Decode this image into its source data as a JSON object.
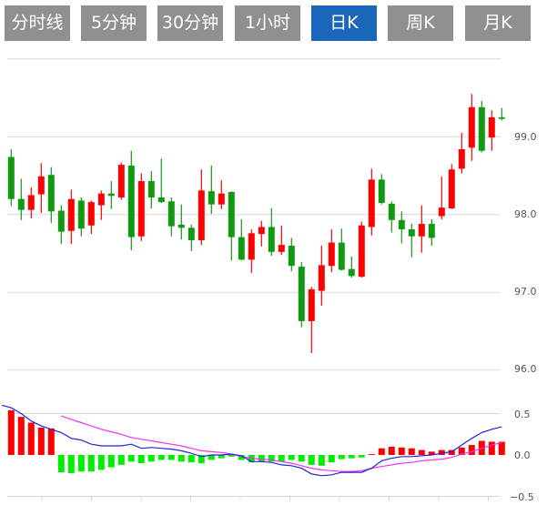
{
  "tabs": [
    {
      "label": "分时线",
      "active": false
    },
    {
      "label": "5分钟",
      "active": false
    },
    {
      "label": "30分钟",
      "active": false
    },
    {
      "label": "1小时",
      "active": false
    },
    {
      "label": "日K",
      "active": true
    },
    {
      "label": "周K",
      "active": false
    },
    {
      "label": "月K",
      "active": false
    }
  ],
  "colors": {
    "up": "#ff0000",
    "down": "#119911",
    "hist_up": "#ff0000",
    "hist_down": "#00ee00",
    "dif": "#2222dd",
    "dea": "#ee33ee",
    "grid": "#d8d8d8",
    "tab": "#909090",
    "tab_active": "#1a66b8"
  },
  "chart_data": [
    {
      "type": "candlestick",
      "y_ticks": [
        "99.0",
        "98.0",
        "97.0",
        "96.0"
      ],
      "ylim": [
        96.0,
        100.0
      ],
      "grid": true,
      "ohlc": [
        [
          98.74,
          98.84,
          98.11,
          98.2
        ],
        [
          98.2,
          98.46,
          97.93,
          98.06
        ],
        [
          98.06,
          98.35,
          97.95,
          98.25
        ],
        [
          98.26,
          98.66,
          98.02,
          98.49
        ],
        [
          98.51,
          98.61,
          97.89,
          98.04
        ],
        [
          98.05,
          98.12,
          97.62,
          97.78
        ],
        [
          97.79,
          98.32,
          97.62,
          98.2
        ],
        [
          98.18,
          98.22,
          97.72,
          97.82
        ],
        [
          97.86,
          98.18,
          97.75,
          98.16
        ],
        [
          98.12,
          98.31,
          97.93,
          98.27
        ],
        [
          98.27,
          98.43,
          98.07,
          98.24
        ],
        [
          98.22,
          98.67,
          98.19,
          98.64
        ],
        [
          98.63,
          98.82,
          97.54,
          97.71
        ],
        [
          97.72,
          98.53,
          97.66,
          98.43
        ],
        [
          98.43,
          98.56,
          98.08,
          98.22
        ],
        [
          98.22,
          98.72,
          98.15,
          98.16
        ],
        [
          98.17,
          98.22,
          97.72,
          97.85
        ],
        [
          97.87,
          98.13,
          97.68,
          97.83
        ],
        [
          97.83,
          97.87,
          97.53,
          97.67
        ],
        [
          97.67,
          98.58,
          97.61,
          98.31
        ],
        [
          98.3,
          98.63,
          98.01,
          98.13
        ],
        [
          98.13,
          98.44,
          98.07,
          98.27
        ],
        [
          98.29,
          98.3,
          97.41,
          97.71
        ],
        [
          97.71,
          97.94,
          97.41,
          97.42
        ],
        [
          97.42,
          97.81,
          97.25,
          97.76
        ],
        [
          97.75,
          97.92,
          97.59,
          97.84
        ],
        [
          97.84,
          98.08,
          97.47,
          97.52
        ],
        [
          97.52,
          97.86,
          97.48,
          97.61
        ],
        [
          97.6,
          97.7,
          97.27,
          97.34
        ],
        [
          97.33,
          97.39,
          96.55,
          96.63
        ],
        [
          96.63,
          97.07,
          96.22,
          97.04
        ],
        [
          97.02,
          97.6,
          96.83,
          97.35
        ],
        [
          97.34,
          97.81,
          97.26,
          97.64
        ],
        [
          97.64,
          97.82,
          97.28,
          97.29
        ],
        [
          97.3,
          97.46,
          97.19,
          97.21
        ],
        [
          97.2,
          97.91,
          97.19,
          97.86
        ],
        [
          97.84,
          98.59,
          97.73,
          98.45
        ],
        [
          98.45,
          98.52,
          98.13,
          98.15
        ],
        [
          98.14,
          98.17,
          97.77,
          97.93
        ],
        [
          97.93,
          98.04,
          97.63,
          97.81
        ],
        [
          97.81,
          97.88,
          97.45,
          97.72
        ],
        [
          97.72,
          98.12,
          97.51,
          97.88
        ],
        [
          97.88,
          97.94,
          97.6,
          97.7
        ],
        [
          97.98,
          98.49,
          97.94,
          98.09
        ],
        [
          98.08,
          98.65,
          98.07,
          98.58
        ],
        [
          98.59,
          99.05,
          98.53,
          98.84
        ],
        [
          98.86,
          99.55,
          98.69,
          99.38
        ],
        [
          99.38,
          99.46,
          98.8,
          98.82
        ],
        [
          98.99,
          99.34,
          98.82,
          99.25
        ],
        [
          99.25,
          99.37,
          99.21,
          99.23
        ]
      ]
    },
    {
      "type": "macd",
      "y_ticks": [
        "0.5",
        "0.0",
        "−0.5"
      ],
      "ylim": [
        -0.5,
        0.5
      ],
      "histogram": [
        0.54,
        0.46,
        0.39,
        0.33,
        0.32,
        -0.21,
        -0.22,
        -0.2,
        -0.2,
        -0.18,
        -0.15,
        -0.12,
        -0.08,
        -0.1,
        -0.08,
        -0.06,
        -0.06,
        -0.08,
        -0.09,
        -0.1,
        -0.06,
        -0.04,
        -0.02,
        -0.06,
        -0.09,
        -0.08,
        -0.08,
        -0.08,
        -0.06,
        -0.08,
        -0.12,
        -0.13,
        -0.09,
        -0.05,
        -0.04,
        -0.03,
        0.01,
        0.08,
        0.1,
        0.09,
        0.08,
        0.06,
        0.04,
        0.06,
        0.06,
        0.09,
        0.12,
        0.17,
        0.16,
        0.16
      ],
      "dif": [
        0.57,
        0.5,
        0.41,
        0.35,
        0.31,
        0.27,
        0.2,
        0.18,
        0.13,
        0.11,
        0.11,
        0.11,
        0.13,
        0.08,
        0.09,
        0.08,
        0.07,
        0.05,
        0.02,
        -0.02,
        0.0,
        0.0,
        0.01,
        -0.01,
        -0.08,
        -0.08,
        -0.09,
        -0.12,
        -0.13,
        -0.16,
        -0.23,
        -0.25,
        -0.24,
        -0.21,
        -0.21,
        -0.21,
        -0.16,
        -0.07,
        -0.04,
        -0.02,
        -0.02,
        -0.01,
        0.0,
        0.02,
        0.04,
        0.12,
        0.2,
        0.27,
        0.31,
        0.34
      ],
      "dea": [
        null,
        null,
        null,
        null,
        null,
        0.47,
        0.43,
        0.39,
        0.35,
        0.31,
        0.28,
        0.25,
        0.21,
        0.19,
        0.17,
        0.15,
        0.13,
        0.11,
        0.08,
        0.05,
        0.04,
        0.03,
        0.01,
        -0.02,
        -0.04,
        -0.05,
        -0.06,
        -0.08,
        -0.1,
        -0.13,
        -0.16,
        -0.18,
        -0.19,
        -0.2,
        -0.2,
        -0.19,
        -0.16,
        -0.14,
        -0.12,
        -0.1,
        -0.09,
        -0.07,
        -0.06,
        -0.05,
        -0.03,
        0.01,
        0.04,
        0.08,
        0.12,
        0.15
      ]
    }
  ]
}
